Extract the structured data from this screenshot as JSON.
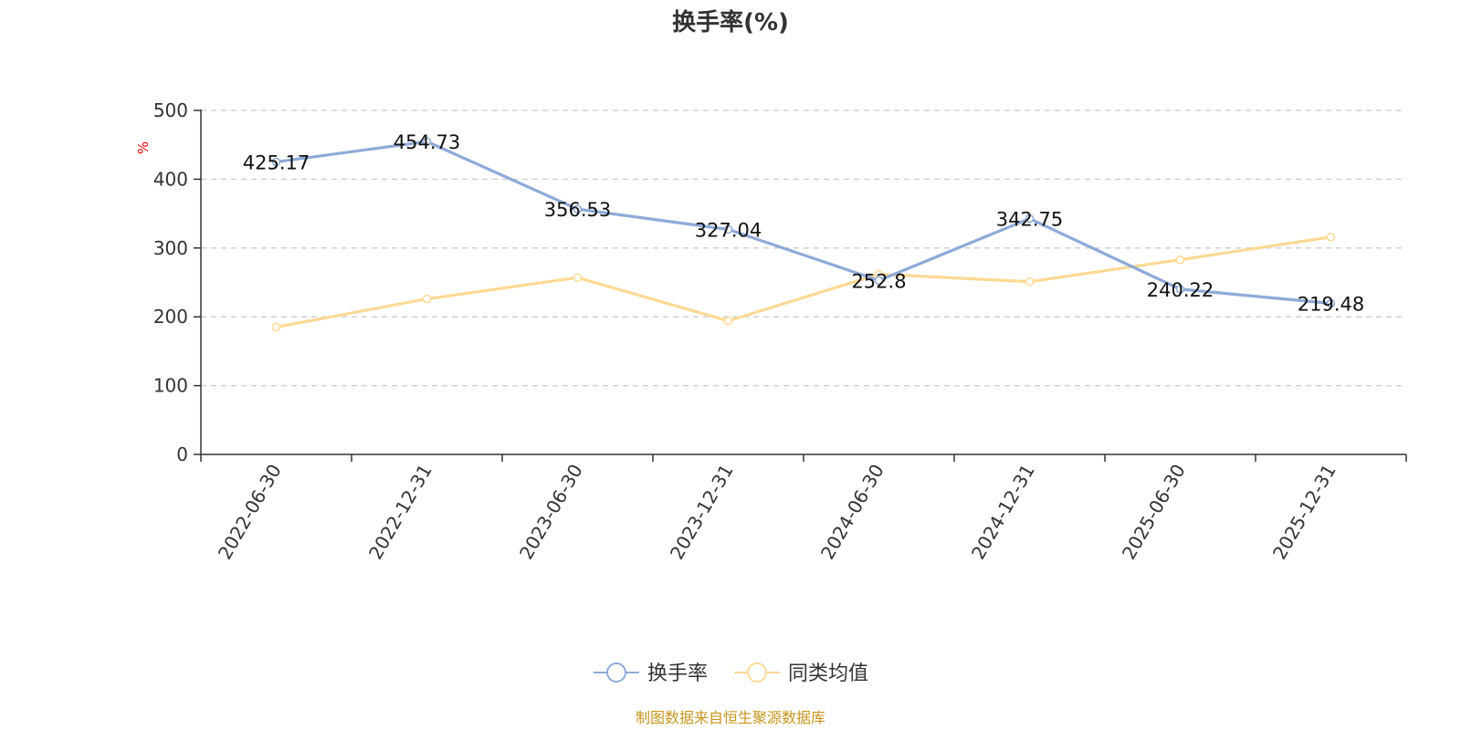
{
  "chart_data": {
    "type": "line",
    "title": "换手率(%)",
    "ylabel": "%",
    "ylim": [
      0,
      500
    ],
    "yticks": [
      0,
      100,
      200,
      300,
      400,
      500
    ],
    "categories": [
      "2022-06-30",
      "2022-12-31",
      "2023-06-30",
      "2023-12-31",
      "2024-06-30",
      "2024-12-31",
      "2025-06-30",
      "2025-12-31"
    ],
    "grid": true,
    "legend_position": "bottom",
    "series": [
      {
        "name": "换手率",
        "color": "#8eaad9",
        "values": [
          425.17,
          454.73,
          356.53,
          327.04,
          252.8,
          342.75,
          240.22,
          219.48
        ],
        "data_labels": [
          "425.17",
          "454.73",
          "356.53",
          "327.04",
          "252.8",
          "342.75",
          "240.22",
          "219.48"
        ]
      },
      {
        "name": "同类均值",
        "color": "#fdd995",
        "values": [
          185,
          226,
          257,
          194,
          262,
          251,
          283,
          316
        ]
      }
    ]
  },
  "source_note": "制图数据来自恒生聚源数据库"
}
